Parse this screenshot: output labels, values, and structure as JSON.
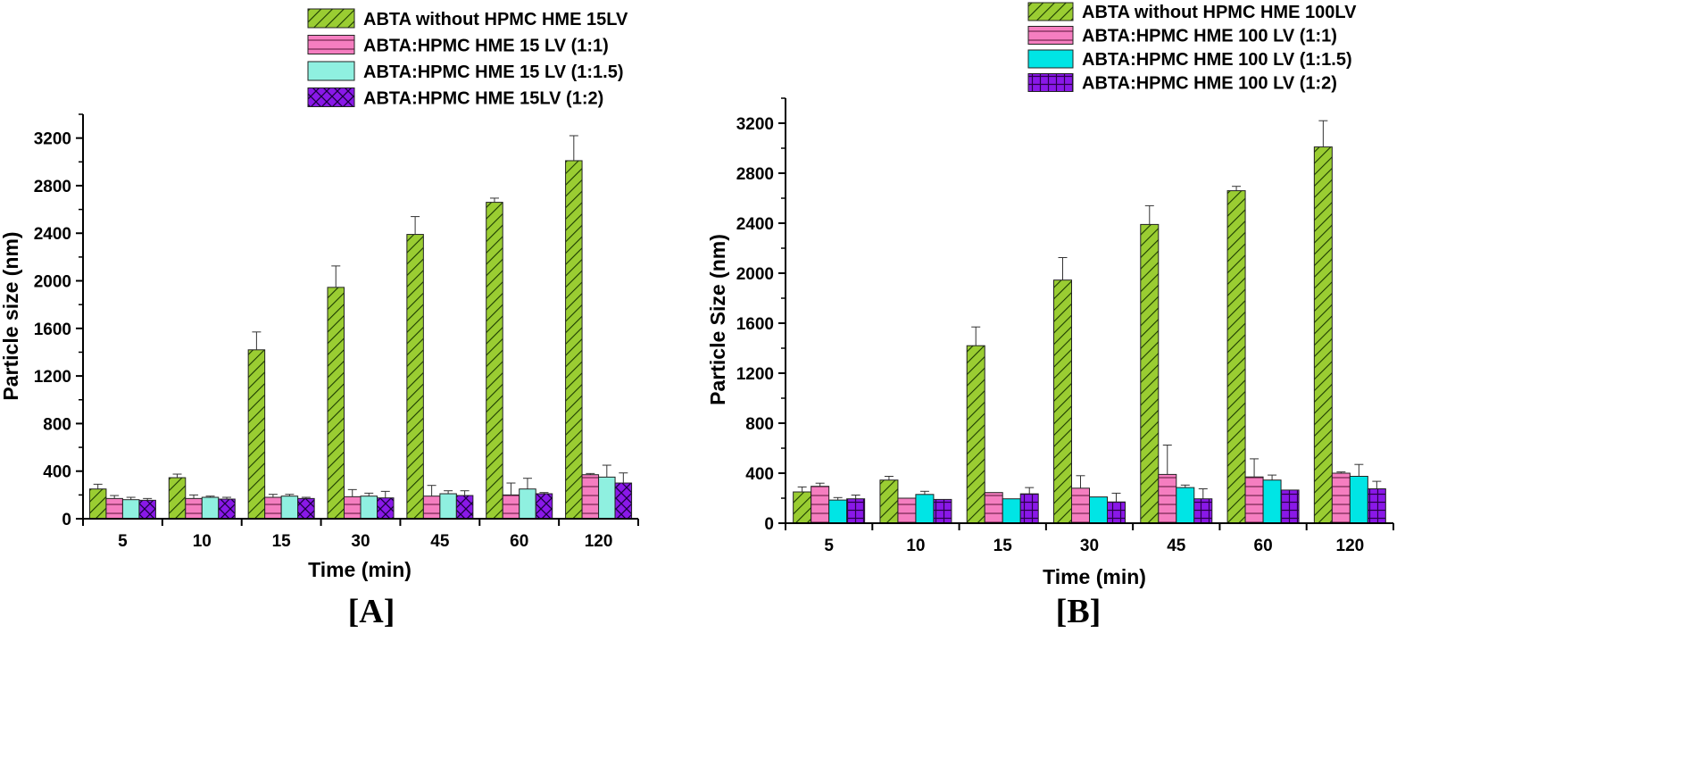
{
  "chart_data": [
    {
      "type": "bar",
      "panel_label": "[A]",
      "title": "",
      "xlabel": "Time (min)",
      "ylabel": "Particle size (nm)",
      "ylim": [
        0,
        3400
      ],
      "yticks": [
        0,
        400,
        800,
        1200,
        1600,
        2000,
        2400,
        2800,
        3200
      ],
      "categories": [
        "5",
        "10",
        "15",
        "30",
        "45",
        "60",
        "120"
      ],
      "legend_position": "top-right",
      "series": [
        {
          "name": "ABTA without HPMC HME 15LV",
          "color": "#9ACD32",
          "pattern": "diagonal",
          "values": [
            250,
            345,
            1420,
            1945,
            2390,
            2660,
            3010
          ],
          "errors": [
            40,
            30,
            150,
            180,
            150,
            35,
            210
          ]
        },
        {
          "name": "ABTA:HPMC HME 15 LV (1:1)",
          "color": "#F57EC0",
          "pattern": "horizontal",
          "values": [
            170,
            170,
            180,
            185,
            190,
            200,
            370
          ],
          "errors": [
            25,
            30,
            25,
            60,
            90,
            100,
            10
          ]
        },
        {
          "name": "ABTA:HPMC HME 15 LV (1:1.5)",
          "color": "#8FF0E0",
          "pattern": "none",
          "values": [
            160,
            180,
            190,
            190,
            210,
            250,
            350
          ],
          "errors": [
            20,
            10,
            15,
            25,
            25,
            90,
            100
          ]
        },
        {
          "name": "ABTA:HPMC HME 15LV (1:2)",
          "color": "#8A18E8",
          "pattern": "crosshatch",
          "values": [
            155,
            165,
            170,
            175,
            195,
            210,
            300
          ],
          "errors": [
            15,
            15,
            10,
            55,
            40,
            10,
            85
          ]
        }
      ]
    },
    {
      "type": "bar",
      "panel_label": "[B]",
      "title": "",
      "xlabel": "Time (min)",
      "ylabel": "Particle Size (nm)",
      "ylim": [
        0,
        3400
      ],
      "yticks": [
        0,
        400,
        800,
        1200,
        1600,
        2000,
        2400,
        2800,
        3200
      ],
      "categories": [
        "5",
        "10",
        "15",
        "30",
        "45",
        "60",
        "120"
      ],
      "legend_position": "top-right",
      "series": [
        {
          "name": "ABTA without HPMC HME 100LV",
          "color": "#9ACD32",
          "pattern": "diagonal",
          "values": [
            250,
            345,
            1420,
            1945,
            2390,
            2660,
            3010
          ],
          "errors": [
            40,
            30,
            150,
            180,
            150,
            35,
            210
          ]
        },
        {
          "name": "ABTA:HPMC HME 100 LV (1:1)",
          "color": "#F57EC0",
          "pattern": "horizontal",
          "values": [
            295,
            200,
            245,
            280,
            390,
            370,
            400
          ],
          "errors": [
            25,
            0,
            0,
            100,
            235,
            145,
            10
          ]
        },
        {
          "name": "ABTA:HPMC HME 100 LV (1:1.5)",
          "color": "#00E5E5",
          "pattern": "none",
          "values": [
            185,
            230,
            195,
            210,
            285,
            345,
            375
          ],
          "errors": [
            20,
            25,
            0,
            0,
            20,
            40,
            95
          ]
        },
        {
          "name": "ABTA:HPMC HME 100 LV (1:2)",
          "color": "#8A18E8",
          "pattern": "grid",
          "values": [
            195,
            190,
            235,
            170,
            195,
            265,
            275
          ],
          "errors": [
            30,
            0,
            50,
            70,
            80,
            0,
            60
          ]
        }
      ]
    }
  ]
}
